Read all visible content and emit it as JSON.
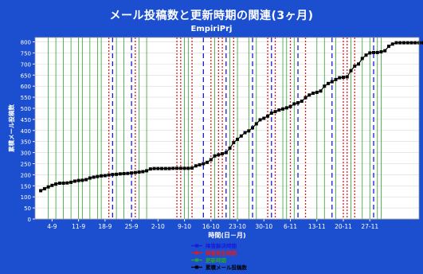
{
  "chart_data": {
    "type": "line",
    "title": "メール投稿数と更新時期の関連(3ヶ月)",
    "subtitle": "EmpiriPrj",
    "xlabel": "時間(日－月)",
    "ylabel": "累積メール投稿数",
    "ylim": [
      0,
      820
    ],
    "yticks": [
      0,
      50,
      100,
      150,
      200,
      250,
      300,
      350,
      400,
      450,
      500,
      550,
      600,
      650,
      700,
      750,
      800
    ],
    "xlim": [
      -1.5,
      100
    ],
    "x_tick_labels": [
      "4-9",
      "11-9",
      "18-9",
      "25-9",
      "2-10",
      "9-10",
      "16-10",
      "23-10",
      "30-10",
      "6-11",
      "13-11",
      "20-11",
      "27-11"
    ],
    "x_tick_positions": [
      3,
      10,
      17,
      24,
      31,
      38,
      45,
      52,
      59,
      66,
      73,
      80,
      87
    ],
    "grid": true,
    "legend_position": "bottom",
    "series": [
      {
        "name": "累積メール投稿数",
        "color": "#000000",
        "values": [
          128,
          137,
          145,
          152,
          158,
          162,
          162,
          163,
          166,
          171,
          174,
          175,
          178,
          185,
          189,
          192,
          195,
          196,
          199,
          201,
          202,
          204,
          205,
          206,
          208,
          210,
          212,
          214,
          218,
          226,
          228,
          228,
          228,
          228,
          228,
          229,
          229,
          229,
          229,
          229,
          230,
          240,
          245,
          250,
          256,
          268,
          285,
          290,
          295,
          300,
          320,
          345,
          360,
          375,
          390,
          398,
          412,
          430,
          448,
          455,
          465,
          478,
          485,
          492,
          497,
          502,
          508,
          520,
          525,
          532,
          548,
          560,
          568,
          572,
          578,
          600,
          612,
          620,
          630,
          638,
          640,
          642,
          670,
          690,
          700,
          725,
          740,
          750,
          752,
          752,
          755,
          760,
          780,
          790,
          796,
          796,
          796,
          796,
          796,
          796,
          796,
          796,
          796,
          796,
          796
        ]
      }
    ],
    "event_lines": [
      {
        "name": "障害解決時期",
        "color": "#1a1adb",
        "style": "dashed",
        "x": [
          19,
          24,
          43,
          49,
          56,
          61,
          68,
          77,
          88
        ]
      },
      {
        "name": "障害発生時期",
        "color": "#e41a1a",
        "style": "dotted",
        "x": [
          18,
          25,
          36,
          37,
          40,
          45,
          47,
          48,
          51,
          60,
          62,
          66,
          70,
          80,
          81,
          83
        ]
      },
      {
        "name": "更新時期",
        "color": "#2da12d",
        "style": "solid",
        "x": [
          2,
          4,
          6,
          8,
          10,
          11,
          13,
          15,
          16,
          20,
          22,
          26,
          28,
          38,
          39,
          46,
          50,
          52,
          55,
          57,
          64,
          65,
          67,
          73,
          75,
          78,
          82,
          85,
          87,
          89,
          90
        ]
      }
    ],
    "legend": [
      {
        "label": "障害解決時期",
        "color": "#1a1adb"
      },
      {
        "label": "障害発生時期",
        "color": "#e41a1a"
      },
      {
        "label": "更新時期",
        "color": "#2da12d"
      },
      {
        "label": "累積メール投稿数",
        "color": "#000000"
      }
    ]
  }
}
